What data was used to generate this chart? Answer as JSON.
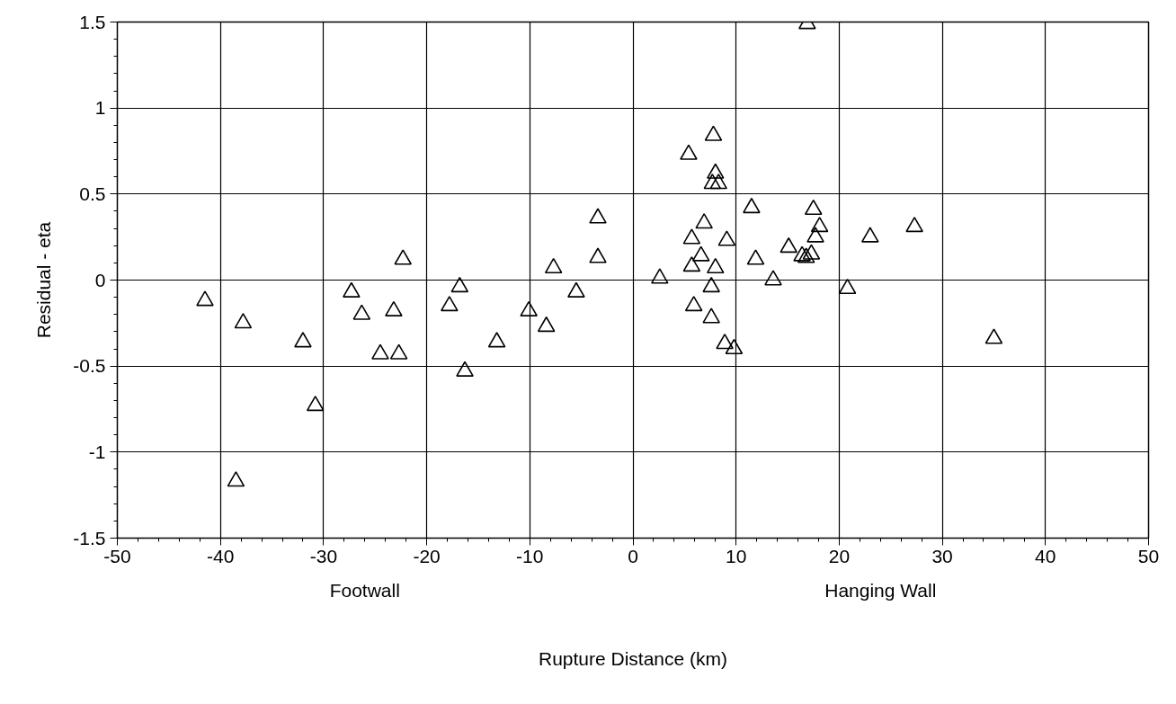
{
  "chart_data": {
    "type": "scatter",
    "xlabel": "Rupture Distance (km)",
    "ylabel": "Residual - eta",
    "annotations": [
      "Footwall",
      "Hanging Wall"
    ],
    "x": [
      -41.5,
      -37.8,
      -32,
      -30.8,
      -38.5,
      -27.3,
      -26.3,
      -24.5,
      -23.2,
      -22.7,
      -22.3,
      -17.8,
      -16.8,
      -16.3,
      -13.2,
      -10.1,
      -8.4,
      -7.7,
      -5.5,
      -3.4,
      -3.4,
      2.6,
      5.4,
      5.7,
      5.7,
      5.9,
      6.6,
      6.9,
      7.6,
      7.6,
      7.8,
      8.0,
      7.7,
      8.3,
      8.0,
      8.9,
      9.1,
      9.8,
      11.5,
      11.9,
      13.6,
      15.1,
      16.4,
      16.8,
      17.3,
      17.5,
      17.7,
      18.1,
      16.9,
      20.8,
      23.0,
      27.3,
      35.0
    ],
    "values": [
      -0.12,
      -0.25,
      -0.36,
      -0.73,
      -1.17,
      -0.07,
      -0.2,
      -0.43,
      -0.18,
      -0.43,
      0.12,
      -0.15,
      -0.04,
      -0.53,
      -0.36,
      -0.18,
      -0.27,
      0.07,
      -0.07,
      0.36,
      0.13,
      0.01,
      0.73,
      0.24,
      0.08,
      -0.15,
      0.14,
      0.33,
      -0.04,
      -0.22,
      0.84,
      0.62,
      0.56,
      0.56,
      0.07,
      -0.37,
      0.23,
      -0.4,
      0.42,
      0.12,
      0.0,
      0.19,
      0.14,
      0.13,
      0.15,
      0.41,
      0.25,
      0.31,
      1.49,
      -0.05,
      0.25,
      0.31,
      -0.34
    ],
    "color": "#000000",
    "marker": "triangle",
    "grid": true,
    "xlim": [
      -50,
      50
    ],
    "xticks": [
      -50,
      -40,
      -30,
      -20,
      -10,
      0,
      10,
      20,
      30,
      40,
      50
    ],
    "ylim": [
      -1.5,
      1.5
    ],
    "yticks": [
      -1.5,
      -1,
      -0.5,
      0,
      0.5,
      1,
      1.5
    ]
  }
}
